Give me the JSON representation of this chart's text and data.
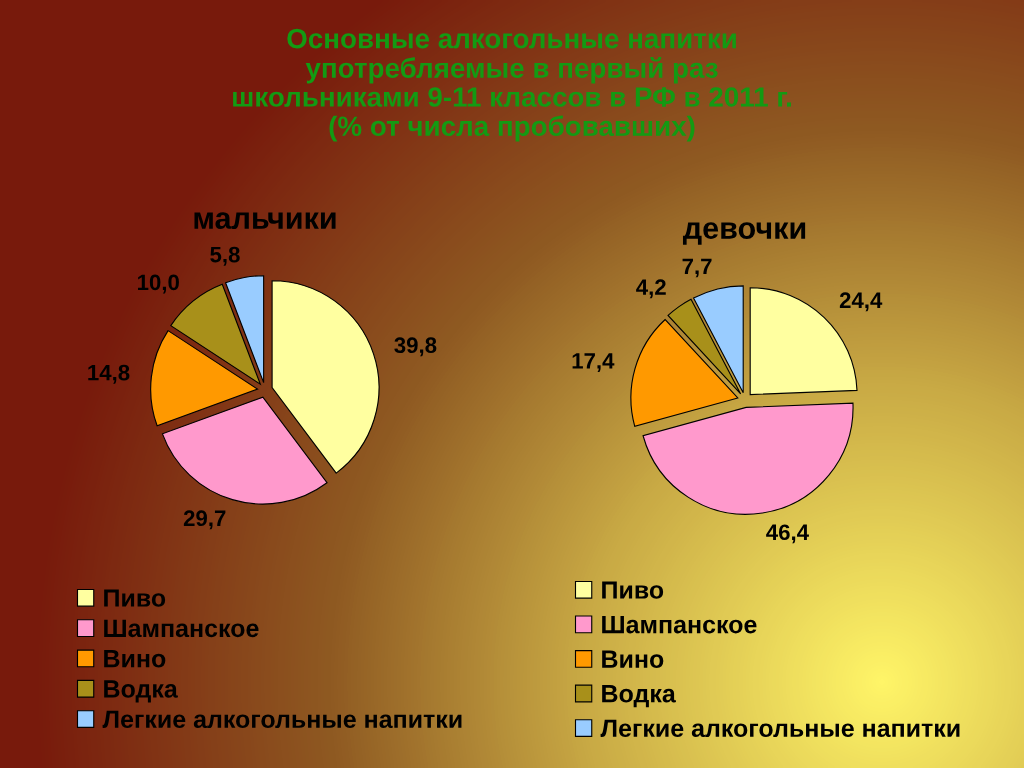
{
  "chart_data": [
    {
      "type": "pie",
      "title": "Основные алкогольные напитки\nупотребляемые в первый раз\nшкольниками 9-11 классов в РФ в 2011 г.\n(% от числа пробовавших)",
      "subtitle": "мальчики",
      "categories": [
        "Пиво",
        "Шампанское",
        "Вино",
        "Водка",
        "Легкие алкогольные напитки"
      ],
      "values": [
        39.8,
        29.7,
        14.8,
        10.0,
        5.8
      ],
      "value_labels": [
        "39,8",
        "29,7",
        "14,8",
        "10,0",
        "5,8"
      ],
      "colors": [
        "#ffffa0",
        "#ff99cc",
        "#ff9900",
        "#a8901a",
        "#99ccff"
      ],
      "legend": "bottom"
    },
    {
      "type": "pie",
      "subtitle": "девочки",
      "categories": [
        "Пиво",
        "Шампанское",
        "Вино",
        "Водка",
        "Легкие алкогольные напитки"
      ],
      "values": [
        24.4,
        46.4,
        17.4,
        4.2,
        7.7
      ],
      "value_labels": [
        "24,4",
        "46,4",
        "17,4",
        "4,2",
        "7,7"
      ],
      "colors": [
        "#ffffa0",
        "#ff99cc",
        "#ff9900",
        "#a8901a",
        "#99ccff"
      ],
      "legend": "bottom"
    }
  ]
}
